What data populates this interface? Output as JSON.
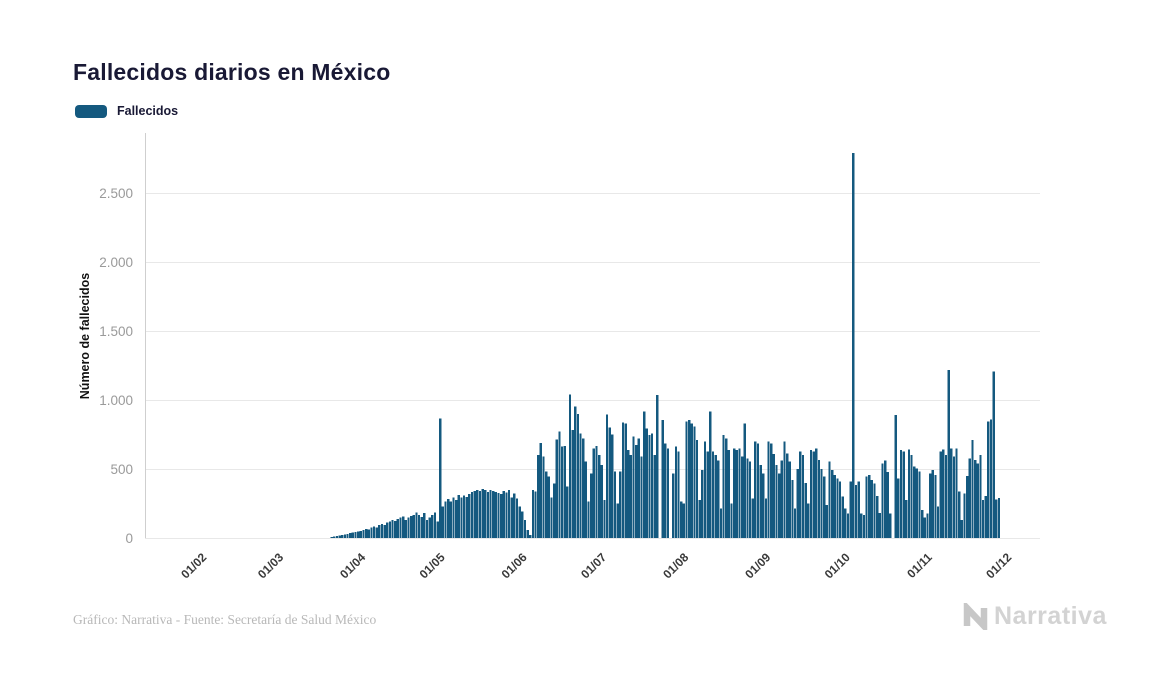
{
  "title": "Fallecidos diarios en México",
  "legend": {
    "label": "Fallecidos",
    "color": "#14597f"
  },
  "y_axis": {
    "title": "Número de fallecidos",
    "ticks": [
      {
        "label": "0",
        "value": 0
      },
      {
        "label": "500",
        "value": 500
      },
      {
        "label": "1.000",
        "value": 1000
      },
      {
        "label": "1.500",
        "value": 1500
      },
      {
        "label": "2.000",
        "value": 2000
      },
      {
        "label": "2.500",
        "value": 2500
      }
    ]
  },
  "x_axis": {
    "ticks": [
      {
        "label": "01/02",
        "date": "2020-02-01"
      },
      {
        "label": "01/03",
        "date": "2020-03-01"
      },
      {
        "label": "01/04",
        "date": "2020-04-01"
      },
      {
        "label": "01/05",
        "date": "2020-05-01"
      },
      {
        "label": "01/06",
        "date": "2020-06-01"
      },
      {
        "label": "01/07",
        "date": "2020-07-01"
      },
      {
        "label": "01/08",
        "date": "2020-08-01"
      },
      {
        "label": "01/09",
        "date": "2020-09-01"
      },
      {
        "label": "01/10",
        "date": "2020-10-01"
      },
      {
        "label": "01/11",
        "date": "2020-11-01"
      },
      {
        "label": "01/12",
        "date": "2020-12-01"
      }
    ]
  },
  "footer": {
    "credit": "Gráfico: Narrativa - Fuente: Secretaría de Salud México",
    "logo_text": "Narrativa"
  },
  "chart_data": {
    "type": "bar",
    "title": "Fallecidos diarios en México",
    "xlabel": "",
    "ylabel": "Número de fallecidos",
    "ylim": [
      0,
      2920
    ],
    "x_domain": [
      "2020-01-10",
      "2020-12-13"
    ],
    "grid": "horizontal",
    "legend_position": "top-left",
    "bar_color": "#14597f",
    "grid_color": "#e8e8e8",
    "axis_line_color": "#cfcfcf",
    "series": [
      {
        "name": "Fallecidos",
        "start_date": "2020-03-20",
        "frequency": "daily",
        "values": [
          6,
          10,
          14,
          17,
          22,
          25,
          29,
          35,
          39,
          43,
          48,
          52,
          58,
          65,
          60,
          75,
          82,
          76,
          94,
          101,
          95,
          113,
          118,
          130,
          123,
          137,
          147,
          155,
          130,
          147,
          160,
          167,
          186,
          165,
          152,
          180,
          130,
          147,
          167,
          186,
          118,
          867,
          227,
          263,
          283,
          263,
          292,
          275,
          311,
          292,
          307,
          298,
          320,
          335,
          342,
          348,
          342,
          355,
          348,
          335,
          348,
          342,
          335,
          327,
          320,
          340,
          330,
          348,
          295,
          324,
          287,
          227,
          191,
          130,
          58,
          20,
          348,
          336,
          601,
          690,
          589,
          481,
          444,
          295,
          396,
          715,
          770,
          662,
          667,
          372,
          1041,
          783,
          952,
          900,
          758,
          722,
          553,
          263,
          469,
          650,
          667,
          600,
          529,
          275,
          896,
          800,
          751,
          481,
          251,
          481,
          836,
          831,
          638,
          601,
          734,
          674,
          722,
          589,
          915,
          795,
          746,
          758,
          601,
          1036,
          0,
          855,
          686,
          650,
          0,
          469,
          662,
          626,
          263,
          251,
          843,
          855,
          831,
          807,
          710,
          275,
          493,
          698,
          625,
          915,
          625,
          601,
          560,
          215,
          746,
          722,
          638,
          251,
          650,
          638,
          650,
          589,
          831,
          577,
          553,
          287,
          698,
          686,
          529,
          469,
          287,
          698,
          686,
          610,
          529,
          469,
          560,
          698,
          613,
          553,
          420,
          215,
          500,
          625,
          601,
          400,
          251,
          638,
          625,
          650,
          565,
          500,
          444,
          239,
          553,
          493,
          456,
          432,
          408,
          300,
          215,
          179,
          408,
          2789,
          384,
          408,
          179,
          167,
          444,
          456,
          420,
          396,
          304,
          180,
          541,
          560,
          480,
          179,
          0,
          890,
          432,
          638,
          626,
          275,
          640,
          600,
          517,
          505,
          481,
          203,
          150,
          179,
          469,
          493,
          456,
          227,
          626,
          642,
          600,
          1219,
          650,
          589,
          650,
          336,
          130,
          324,
          450,
          577,
          710,
          565,
          541,
          600,
          275,
          304,
          843,
          860,
          1205,
          280,
          290
        ]
      }
    ]
  }
}
